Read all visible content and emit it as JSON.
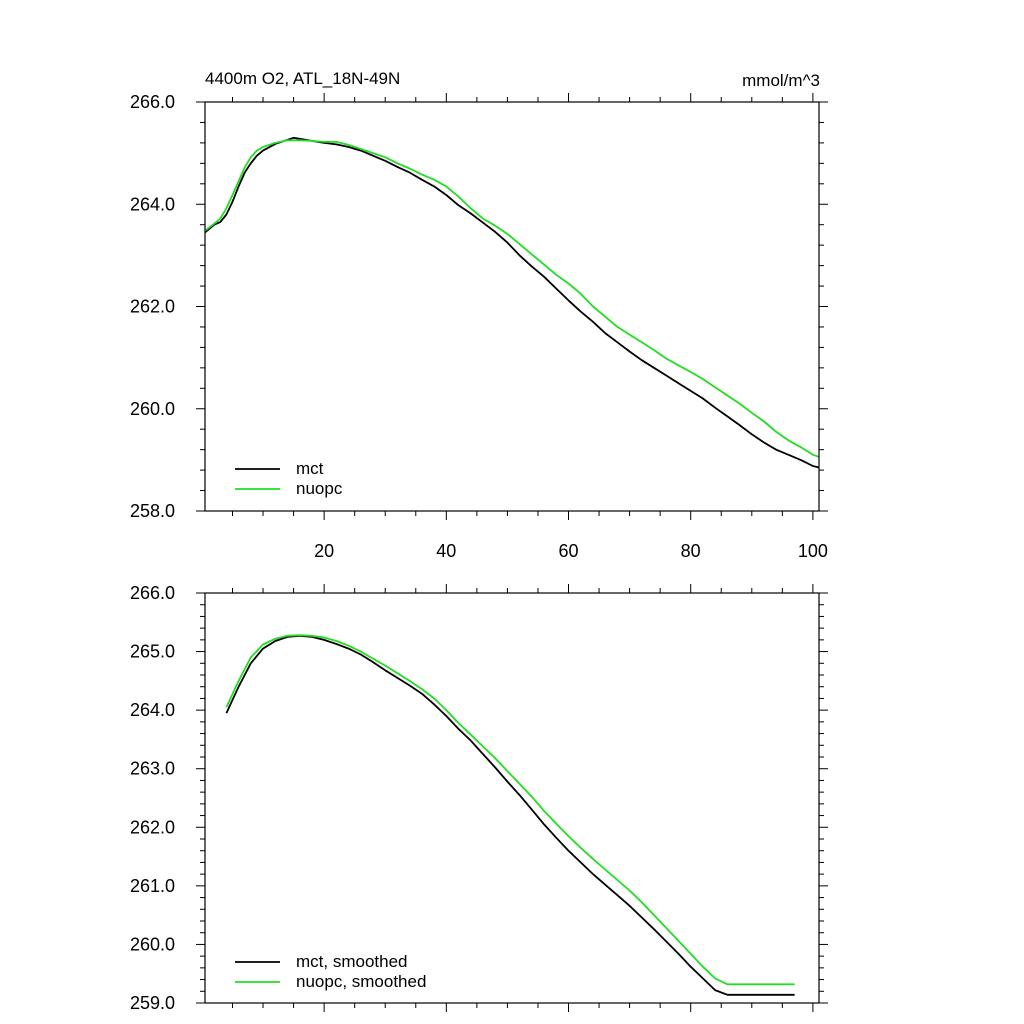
{
  "chart_data": [
    {
      "type": "line",
      "title_left": "4400m O2, ATL_18N-49N",
      "title_right": "mmol/m^3",
      "xlabel": "",
      "ylabel": "",
      "xlim": [
        0.5,
        101
      ],
      "ylim": [
        258,
        266
      ],
      "x_ticks": [
        20,
        40,
        60,
        80,
        100
      ],
      "x_tick_labels": [
        "20",
        "40",
        "60",
        "80",
        "100"
      ],
      "y_ticks": [
        258,
        260,
        262,
        264,
        266
      ],
      "y_tick_labels": [
        "258.0",
        "260.0",
        "262.0",
        "264.0",
        "266.0"
      ],
      "legend_position": "bottom-left",
      "series": [
        {
          "name": "mct",
          "color": "#000000",
          "x": [
            0.5,
            2,
            3,
            4,
            5,
            6,
            7,
            8,
            9,
            10,
            12,
            14,
            15,
            16,
            18,
            20,
            22,
            24,
            26,
            28,
            30,
            32,
            34,
            36,
            38,
            40,
            42,
            44,
            46,
            48,
            50,
            52,
            54,
            56,
            58,
            60,
            62,
            64,
            66,
            68,
            70,
            72,
            74,
            76,
            78,
            80,
            82,
            84,
            86,
            88,
            90,
            92,
            94,
            96,
            98,
            100,
            101
          ],
          "values": [
            263.45,
            263.6,
            263.65,
            263.8,
            264.05,
            264.35,
            264.62,
            264.8,
            264.95,
            265.05,
            265.18,
            265.26,
            265.3,
            265.28,
            265.24,
            265.2,
            265.17,
            265.12,
            265.05,
            264.95,
            264.85,
            264.73,
            264.62,
            264.48,
            264.35,
            264.18,
            263.98,
            263.82,
            263.64,
            263.46,
            263.25,
            263.0,
            262.78,
            262.58,
            262.35,
            262.12,
            261.9,
            261.7,
            261.48,
            261.3,
            261.12,
            260.95,
            260.8,
            260.65,
            260.5,
            260.35,
            260.2,
            260.02,
            259.85,
            259.68,
            259.5,
            259.34,
            259.2,
            259.1,
            259.0,
            258.88,
            258.85
          ]
        },
        {
          "name": "nuopc",
          "color": "#22dd22",
          "x": [
            0.5,
            2,
            3,
            4,
            5,
            6,
            7,
            8,
            9,
            10,
            12,
            14,
            15,
            16,
            18,
            20,
            22,
            24,
            26,
            28,
            30,
            32,
            34,
            36,
            38,
            40,
            42,
            44,
            46,
            48,
            50,
            52,
            54,
            56,
            58,
            60,
            62,
            64,
            66,
            68,
            70,
            72,
            74,
            76,
            78,
            80,
            82,
            84,
            86,
            88,
            90,
            92,
            94,
            96,
            98,
            100,
            101
          ],
          "values": [
            263.48,
            263.62,
            263.72,
            263.92,
            264.18,
            264.45,
            264.72,
            264.92,
            265.05,
            265.12,
            265.2,
            265.25,
            265.25,
            265.25,
            265.24,
            265.22,
            265.22,
            265.16,
            265.08,
            265.0,
            264.92,
            264.8,
            264.7,
            264.58,
            264.48,
            264.35,
            264.15,
            263.92,
            263.72,
            263.58,
            263.42,
            263.22,
            263.02,
            262.82,
            262.62,
            262.45,
            262.25,
            262.0,
            261.8,
            261.6,
            261.45,
            261.3,
            261.15,
            260.98,
            260.85,
            260.72,
            260.58,
            260.42,
            260.26,
            260.1,
            259.92,
            259.75,
            259.55,
            259.38,
            259.25,
            259.1,
            259.06
          ]
        }
      ]
    },
    {
      "type": "line",
      "xlabel": "",
      "ylabel": "",
      "xlim": [
        0.5,
        101
      ],
      "ylim": [
        259,
        266
      ],
      "x_ticks": [
        20,
        40,
        60,
        80,
        100
      ],
      "y_ticks": [
        259,
        260,
        261,
        262,
        263,
        264,
        265,
        266
      ],
      "y_tick_labels": [
        "259.0",
        "260.0",
        "261.0",
        "262.0",
        "263.0",
        "264.0",
        "265.0",
        "266.0"
      ],
      "legend_position": "bottom-left",
      "series": [
        {
          "name": "mct, smoothed",
          "color": "#000000",
          "x": [
            4,
            6,
            8,
            10,
            12,
            14,
            16,
            18,
            20,
            22,
            24,
            26,
            28,
            30,
            32,
            34,
            36,
            38,
            40,
            42,
            44,
            46,
            48,
            50,
            52,
            54,
            56,
            58,
            60,
            62,
            64,
            66,
            68,
            70,
            72,
            74,
            76,
            78,
            80,
            82,
            84,
            86,
            88,
            90,
            92,
            94,
            96,
            97
          ],
          "values": [
            263.95,
            264.4,
            264.8,
            265.05,
            265.18,
            265.25,
            265.27,
            265.25,
            265.2,
            265.13,
            265.05,
            264.95,
            264.82,
            264.68,
            264.55,
            264.42,
            264.28,
            264.1,
            263.9,
            263.68,
            263.48,
            263.25,
            263.02,
            262.78,
            262.55,
            262.3,
            262.05,
            261.82,
            261.6,
            261.4,
            261.2,
            261.02,
            260.84,
            260.66,
            260.46,
            260.26,
            260.05,
            259.84,
            259.62,
            259.42,
            259.22,
            259.14,
            259.14,
            259.14,
            259.14,
            259.14,
            259.14,
            259.14
          ]
        },
        {
          "name": "nuopc, smoothed",
          "color": "#22dd22",
          "x": [
            4,
            6,
            8,
            10,
            12,
            14,
            16,
            18,
            20,
            22,
            24,
            26,
            28,
            30,
            32,
            34,
            36,
            38,
            40,
            42,
            44,
            46,
            48,
            50,
            52,
            54,
            56,
            58,
            60,
            62,
            64,
            66,
            68,
            70,
            72,
            74,
            76,
            78,
            80,
            82,
            84,
            86,
            88,
            90,
            92,
            94,
            96,
            97
          ],
          "values": [
            264.05,
            264.5,
            264.9,
            265.12,
            265.22,
            265.27,
            265.28,
            265.27,
            265.24,
            265.18,
            265.1,
            265.0,
            264.88,
            264.76,
            264.63,
            264.5,
            264.36,
            264.2,
            264.0,
            263.78,
            263.58,
            263.38,
            263.18,
            262.96,
            262.74,
            262.52,
            262.28,
            262.06,
            261.85,
            261.65,
            261.46,
            261.28,
            261.1,
            260.92,
            260.72,
            260.5,
            260.28,
            260.06,
            259.84,
            259.62,
            259.42,
            259.32,
            259.32,
            259.32,
            259.32,
            259.32,
            259.32,
            259.32
          ]
        }
      ]
    }
  ]
}
